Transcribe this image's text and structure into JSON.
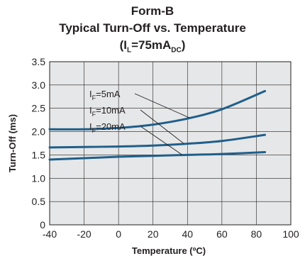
{
  "chart_data": {
    "type": "line",
    "title_line1": "Form-B",
    "title_line2": "Typical Turn-Off vs. Temperature",
    "title_line3": {
      "prefix": "(I",
      "sub1": "L",
      "mid": "=75mA",
      "sub2": "DC",
      "suffix": ")"
    },
    "xlabel": "Temperature (ºC)",
    "ylabel": "Turn-Off (ms)",
    "xlim": [
      -40,
      100
    ],
    "ylim": [
      0,
      3.5
    ],
    "xticks": [
      "-40",
      "-20",
      "0",
      "20",
      "40",
      "60",
      "80",
      "100"
    ],
    "yticks": [
      "0",
      "0.5",
      "1.0",
      "1.5",
      "2.0",
      "2.5",
      "3.0",
      "3.5"
    ],
    "grid": true,
    "series": [
      {
        "name": "IF=5mA",
        "label_prefix": "I",
        "label_sub": "F",
        "label_suffix": "=5mA",
        "x": [
          -40,
          -20,
          0,
          20,
          40,
          60,
          85
        ],
        "y": [
          2.05,
          2.05,
          2.08,
          2.15,
          2.28,
          2.48,
          2.87
        ]
      },
      {
        "name": "IF=10mA",
        "label_prefix": "I",
        "label_sub": "F",
        "label_suffix": "=10mA",
        "x": [
          -40,
          -20,
          0,
          20,
          40,
          60,
          85
        ],
        "y": [
          1.66,
          1.67,
          1.68,
          1.7,
          1.74,
          1.8,
          1.93
        ]
      },
      {
        "name": "IF=20mA",
        "label_prefix": "I",
        "label_sub": "F",
        "label_suffix": "=20mA",
        "x": [
          -40,
          -20,
          0,
          20,
          40,
          60,
          85
        ],
        "y": [
          1.4,
          1.43,
          1.46,
          1.48,
          1.5,
          1.52,
          1.56
        ]
      }
    ],
    "series_color": "#1f5f8b",
    "plot_background": "#e6e7e8",
    "grid_color": "#231f20"
  }
}
